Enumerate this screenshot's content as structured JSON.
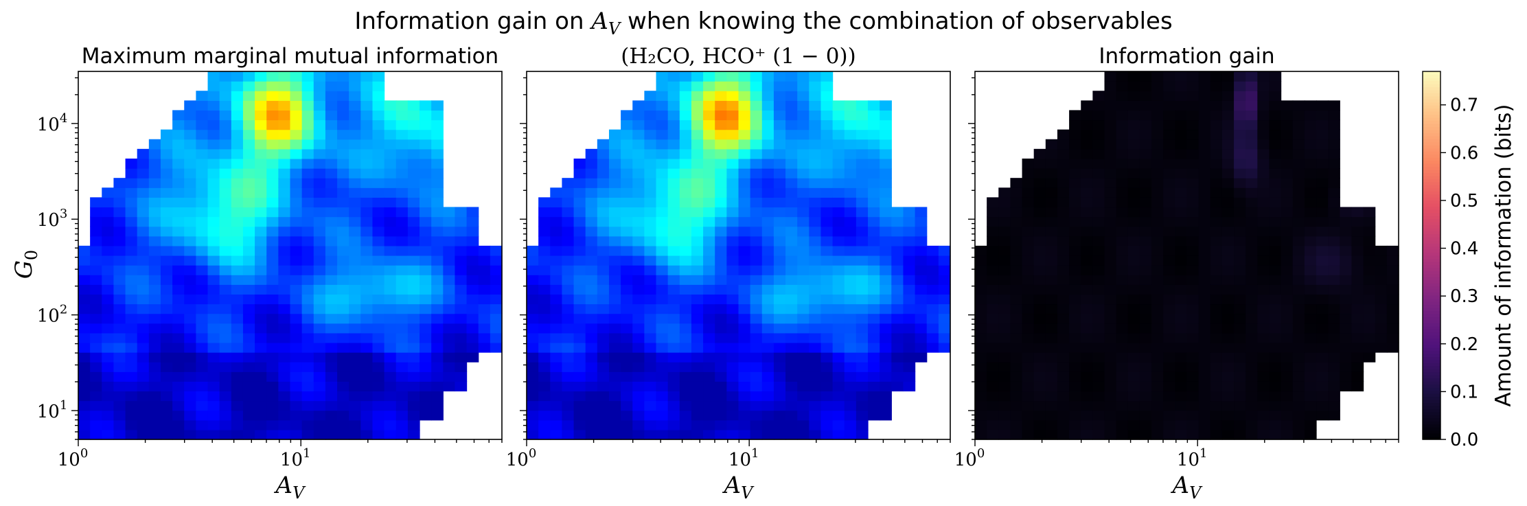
{
  "figure": {
    "title": "Information gain on A_V when knowing the combination of observables"
  },
  "panels": [
    {
      "title": "Maximum marginal mutual information",
      "cmap": "jet"
    },
    {
      "title": "(H₂CO, HCO⁺ (1 − 0))",
      "cmap": "jet"
    },
    {
      "title": "Information gain",
      "cmap": "magma"
    }
  ],
  "axes": {
    "xlabel": "A_V",
    "ylabel": "G_0",
    "x_ticks": [
      {
        "value": 1,
        "base": "10",
        "exp": "0"
      },
      {
        "value": 10,
        "base": "10",
        "exp": "1"
      }
    ],
    "y_ticks": [
      {
        "value": 10,
        "base": "10",
        "exp": "1"
      },
      {
        "value": 100,
        "base": "10",
        "exp": "2"
      },
      {
        "value": 1000,
        "base": "10",
        "exp": "3"
      },
      {
        "value": 10000,
        "base": "10",
        "exp": "4"
      }
    ]
  },
  "colorbar": {
    "label": "Amount of information (bits)",
    "ticks": [
      "0.0",
      "0.1",
      "0.2",
      "0.3",
      "0.4",
      "0.5",
      "0.6",
      "0.7"
    ],
    "range": [
      0,
      0.77
    ]
  },
  "chart_data": [
    {
      "type": "heatmap",
      "title": "Maximum marginal mutual information",
      "xlabel": "A_V",
      "ylabel": "G_0",
      "xscale": "log",
      "yscale": "log",
      "xlim": [
        1,
        80
      ],
      "ylim": [
        5,
        35000
      ],
      "colormap": "jet",
      "vrange": [
        0,
        0.77
      ],
      "value_range_shown": [
        0.05,
        0.5
      ],
      "features": [
        {
          "A_V": 8,
          "G_0": 15000,
          "bits": 0.5
        },
        {
          "A_V": 4.5,
          "G_0": 1200,
          "bits": 0.33
        },
        {
          "A_V": 20,
          "G_0": 160,
          "bits": 0.28
        },
        {
          "A_V": 30,
          "G_0": 10000,
          "bits": 0.35
        },
        {
          "A_V": 50,
          "G_0": 8000,
          "bits": 0.33
        }
      ]
    },
    {
      "type": "heatmap",
      "title": "(H₂CO, HCO⁺ (1 − 0))",
      "xlabel": "A_V",
      "xscale": "log",
      "yscale": "log",
      "xlim": [
        1,
        80
      ],
      "ylim": [
        5,
        35000
      ],
      "colormap": "jet",
      "vrange": [
        0,
        0.77
      ],
      "value_range_shown": [
        0.05,
        0.52
      ],
      "features": [
        {
          "A_V": 8,
          "G_0": 15000,
          "bits": 0.52
        },
        {
          "A_V": 4.5,
          "G_0": 1200,
          "bits": 0.34
        },
        {
          "A_V": 20,
          "G_0": 160,
          "bits": 0.29
        },
        {
          "A_V": 30,
          "G_0": 10000,
          "bits": 0.36
        }
      ]
    },
    {
      "type": "heatmap",
      "title": "Information gain",
      "xlabel": "A_V",
      "xscale": "log",
      "yscale": "log",
      "xlim": [
        1,
        80
      ],
      "ylim": [
        5,
        35000
      ],
      "colormap": "magma",
      "vrange": [
        0,
        0.77
      ],
      "value_range_shown": [
        0,
        0.2
      ],
      "features": [
        {
          "A_V": 17,
          "G_0": 15000,
          "bits": 0.18
        },
        {
          "A_V": 17,
          "G_0": 5000,
          "bits": 0.12
        },
        {
          "A_V": 40,
          "G_0": 300,
          "bits": 0.06
        },
        {
          "A_V": 60,
          "G_0": 2500,
          "bits": 0.05
        }
      ]
    }
  ]
}
